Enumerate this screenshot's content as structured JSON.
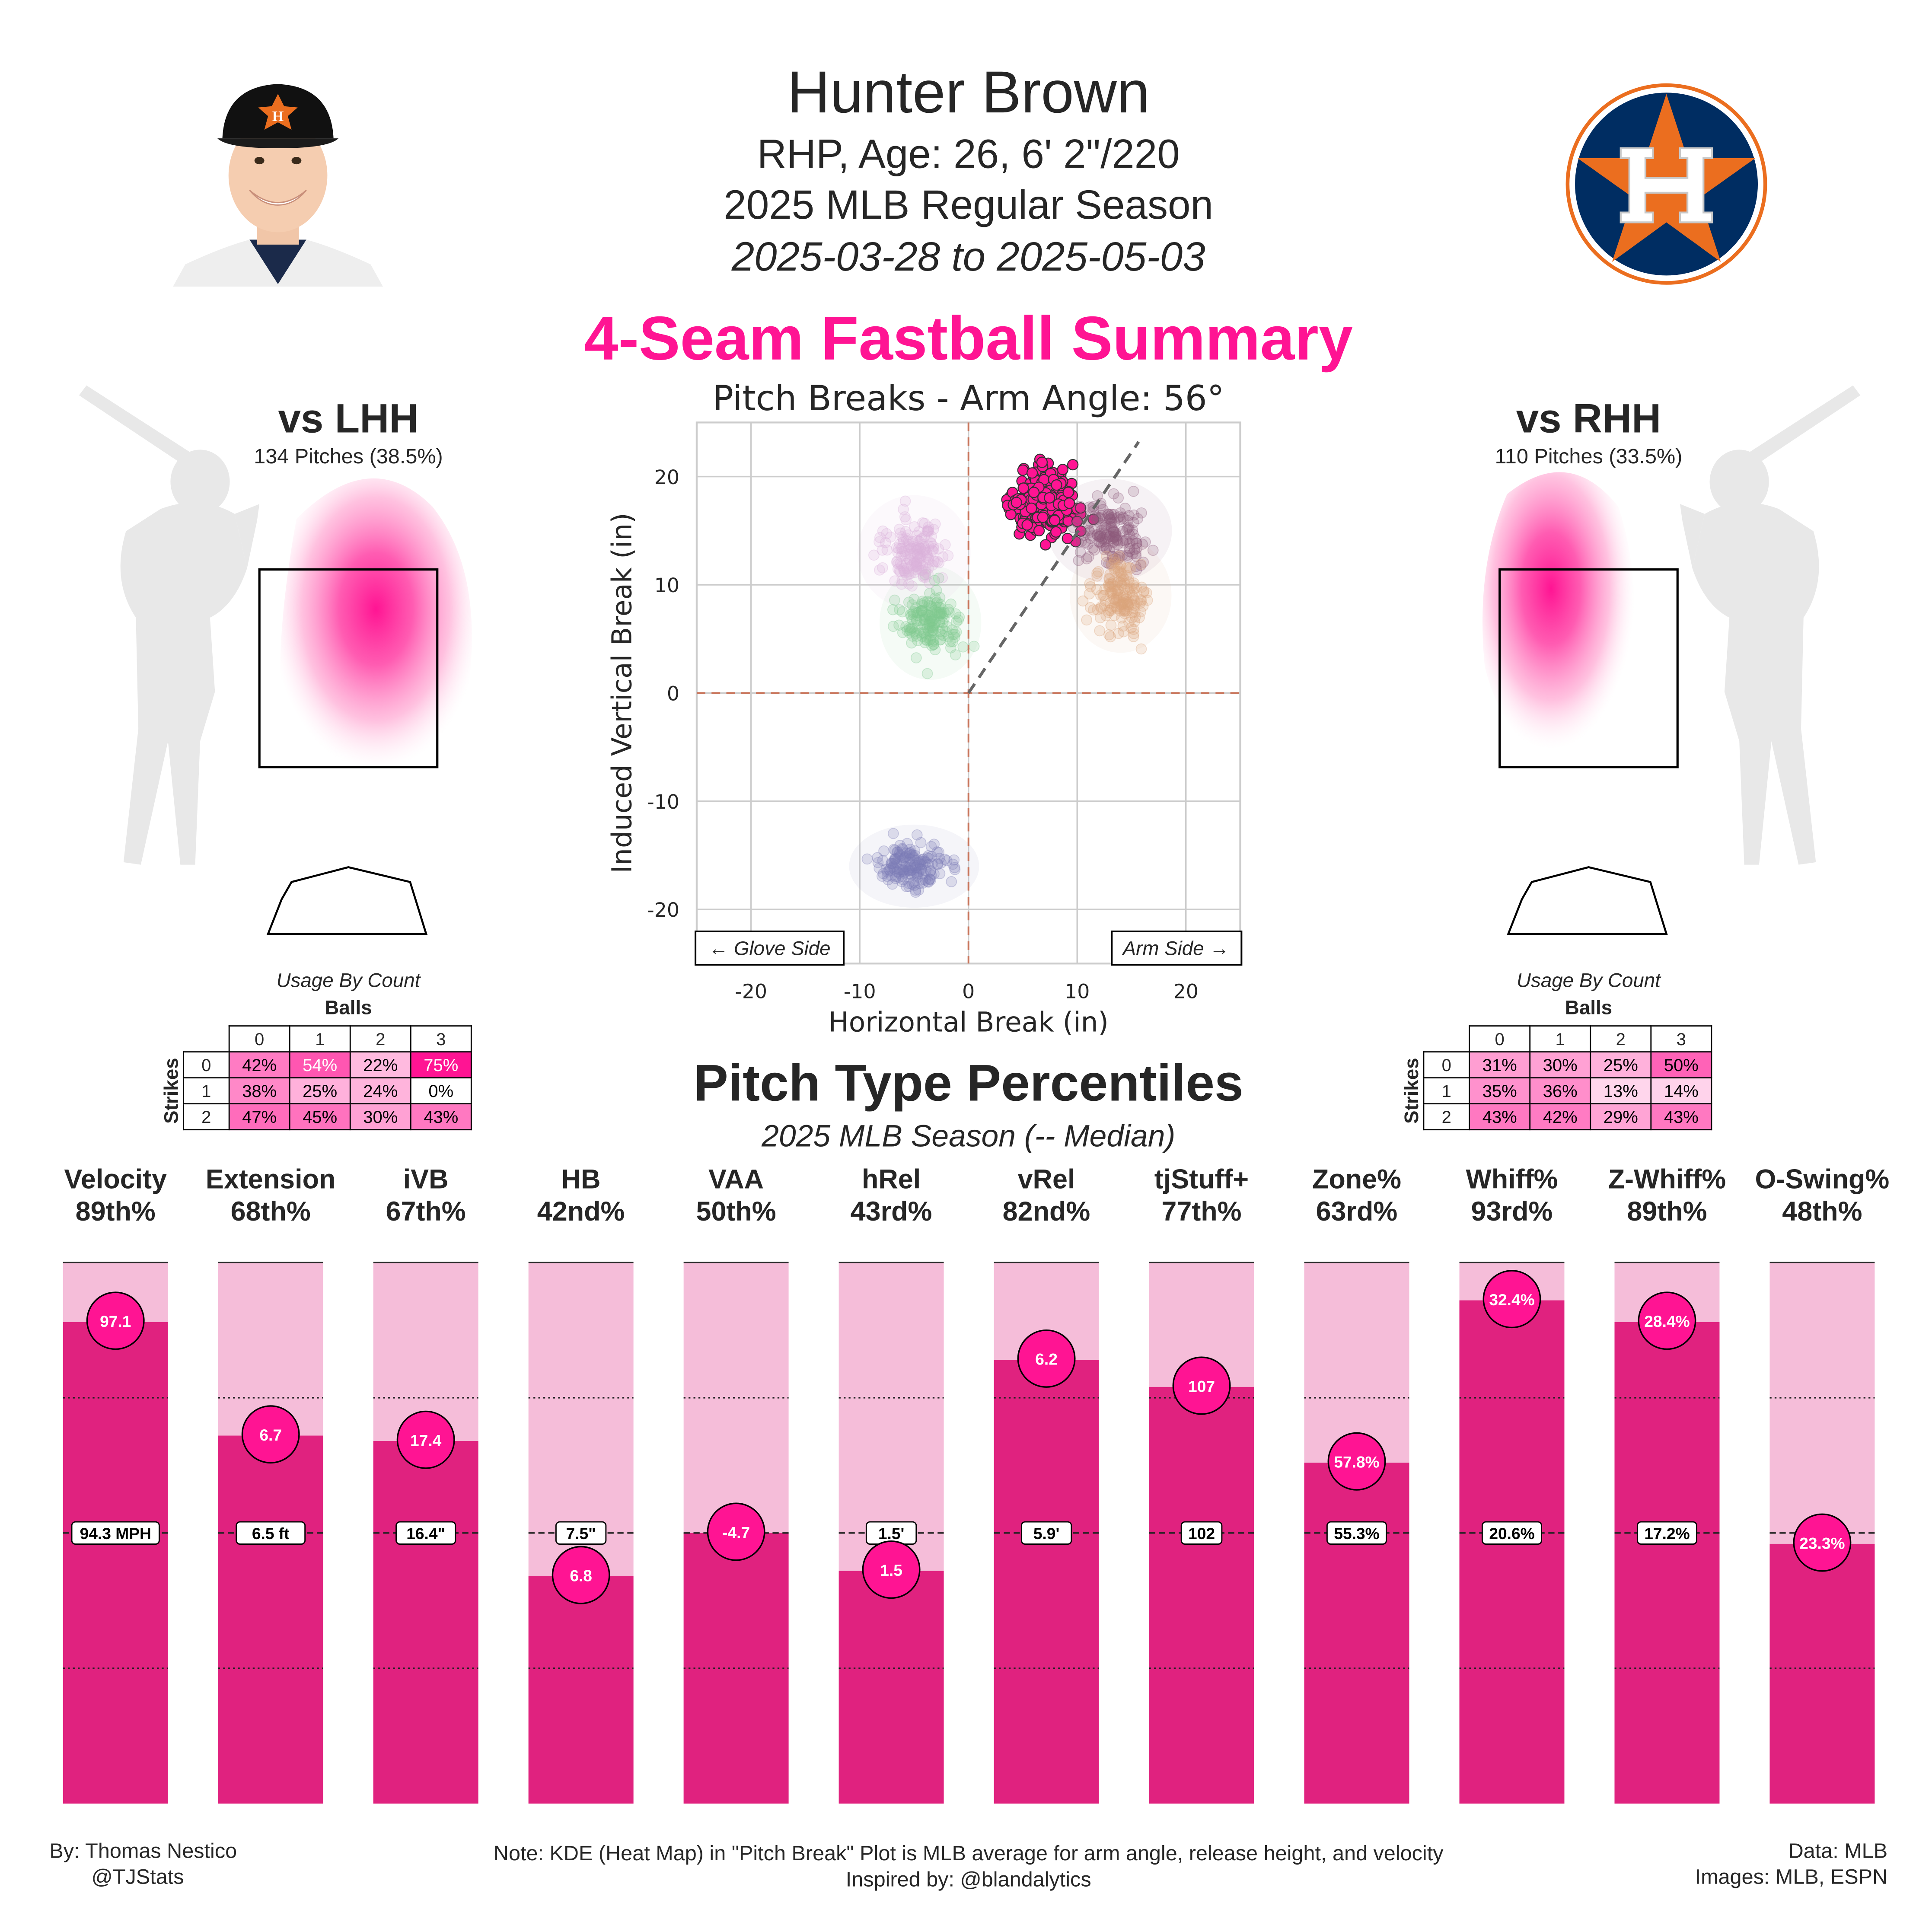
{
  "header": {
    "name": "Hunter Brown",
    "bio": "RHP, Age: 26, 6' 2\"/220",
    "season": "2025 MLB Regular Season",
    "date_range": "2025-03-28 to 2025-05-03",
    "summary_title": "4-Seam Fastball Summary"
  },
  "colors": {
    "accent": "#ff1493",
    "bar_dark": "#e0227f",
    "bar_light": "#f5bdd9"
  },
  "lhh": {
    "title": "vs LHH",
    "pitches": "134 Pitches (38.5%)"
  },
  "rhh": {
    "title": "vs RHH",
    "pitches": "110 Pitches (33.5%)"
  },
  "usage_by_count": {
    "caption": "Usage By Count",
    "balls_label": "Balls",
    "strikes_label": "Strikes",
    "balls": [
      "0",
      "1",
      "2",
      "3"
    ],
    "strikes": [
      "0",
      "1",
      "2"
    ],
    "lhh": [
      [
        "42%",
        "54%",
        "22%",
        "75%"
      ],
      [
        "38%",
        "25%",
        "24%",
        "0%"
      ],
      [
        "47%",
        "45%",
        "30%",
        "43%"
      ]
    ],
    "rhh": [
      [
        "31%",
        "30%",
        "25%",
        "50%"
      ],
      [
        "35%",
        "36%",
        "13%",
        "14%"
      ],
      [
        "43%",
        "42%",
        "29%",
        "43%"
      ]
    ]
  },
  "chart_data": [
    {
      "type": "scatter",
      "title": "Pitch Breaks - Arm Angle: 56°",
      "xlabel": "Horizontal Break (in)",
      "ylabel": "Induced Vertical Break (in)",
      "xlim": [
        -25,
        25
      ],
      "ylim": [
        -25,
        25
      ],
      "xticks": [
        -20,
        -10,
        0,
        10,
        20
      ],
      "yticks": [
        -20,
        -10,
        0,
        10,
        20
      ],
      "grid": true,
      "arm_angle_deg": 56,
      "glove_label": "← Glove Side",
      "arm_label": "Arm Side →",
      "series": [
        {
          "pitch": "4-Seam Fastball",
          "color": "#ff1493",
          "highlight": true,
          "center": [
            7,
            17.5
          ],
          "spread": [
            2.3,
            2.1
          ]
        },
        {
          "color": "#8b5a7a",
          "center": [
            13,
            15
          ],
          "spread": [
            2.2,
            2.0
          ]
        },
        {
          "color": "#d9a27a",
          "center": [
            14,
            9
          ],
          "spread": [
            1.8,
            2.2
          ]
        },
        {
          "color": "#7ec98f",
          "center": [
            -3.5,
            6.5
          ],
          "spread": [
            1.8,
            2.2
          ]
        },
        {
          "color": "#d9b3d9",
          "center": [
            -5,
            13
          ],
          "spread": [
            2.0,
            2.2
          ]
        },
        {
          "color": "#7b7bb5",
          "center": [
            -5,
            -16
          ],
          "spread": [
            2.3,
            1.6
          ]
        }
      ]
    },
    {
      "type": "bar",
      "title": "Pitch Type Percentiles",
      "subtitle": "2025 MLB Season (-- Median)",
      "ylim": [
        0,
        100
      ],
      "metrics": [
        {
          "name": "Velocity",
          "percentile": 89,
          "pct_label": "89th%",
          "value": "97.1",
          "median": "94.3 MPH"
        },
        {
          "name": "Extension",
          "percentile": 68,
          "pct_label": "68th%",
          "value": "6.7",
          "median": "6.5 ft"
        },
        {
          "name": "iVB",
          "percentile": 67,
          "pct_label": "67th%",
          "value": "17.4",
          "median": "16.4\""
        },
        {
          "name": "HB",
          "percentile": 42,
          "pct_label": "42nd%",
          "value": "6.8",
          "median": "7.5\""
        },
        {
          "name": "VAA",
          "percentile": 50,
          "pct_label": "50th%",
          "value": "-4.7",
          "median": ""
        },
        {
          "name": "hRel",
          "percentile": 43,
          "pct_label": "43rd%",
          "value": "1.5",
          "median": "1.5'"
        },
        {
          "name": "vRel",
          "percentile": 82,
          "pct_label": "82nd%",
          "value": "6.2",
          "median": "5.9'"
        },
        {
          "name": "tjStuff+",
          "percentile": 77,
          "pct_label": "77th%",
          "value": "107",
          "median": "102"
        },
        {
          "name": "Zone%",
          "percentile": 63,
          "pct_label": "63rd%",
          "value": "57.8%",
          "median": "55.3%"
        },
        {
          "name": "Whiff%",
          "percentile": 93,
          "pct_label": "93rd%",
          "value": "32.4%",
          "median": "20.6%"
        },
        {
          "name": "Z-Whiff%",
          "percentile": 89,
          "pct_label": "89th%",
          "value": "28.4%",
          "median": "17.2%"
        },
        {
          "name": "O-Swing%",
          "percentile": 48,
          "pct_label": "48th%",
          "value": "23.3%",
          "median": ""
        }
      ]
    }
  ],
  "footer": {
    "by": "By: Thomas Nestico",
    "handle": "@TJStats",
    "note": "Note: KDE (Heat Map) in \"Pitch Break\" Plot is MLB average for arm angle, release height, and velocity",
    "inspired": "Inspired by: @blandalytics",
    "data": "Data: MLB",
    "images": "Images: MLB, ESPN"
  }
}
